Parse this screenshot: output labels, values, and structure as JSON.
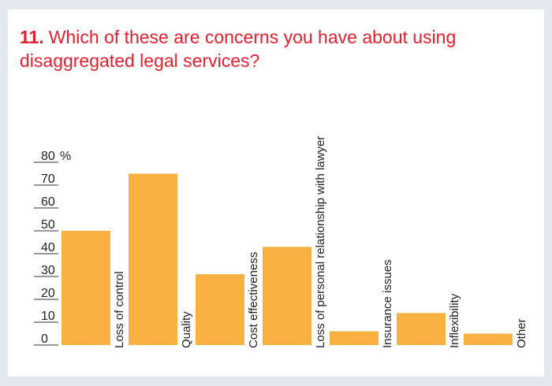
{
  "question": {
    "number": "11.",
    "text": "Which of these are concerns you have about using disaggregated legal services?"
  },
  "colors": {
    "accent": "#e5202e",
    "bar": "#f8b040",
    "axis": "#333333"
  },
  "chart_data": {
    "type": "bar",
    "title": "Which of these are concerns you have about using disaggregated legal services?",
    "unit": "%",
    "ylim": [
      0,
      80
    ],
    "yticks": [
      0,
      10,
      20,
      30,
      40,
      50,
      60,
      70,
      80
    ],
    "categories": [
      "Loss of control",
      "Quality",
      "Cost effectiveness",
      "Loss of personal relationship with lawyer",
      "Insurance issues",
      "Inflexibility",
      "Other"
    ],
    "values": [
      50,
      75,
      31,
      43,
      6,
      14,
      5
    ],
    "grid": false,
    "legend": "none"
  }
}
